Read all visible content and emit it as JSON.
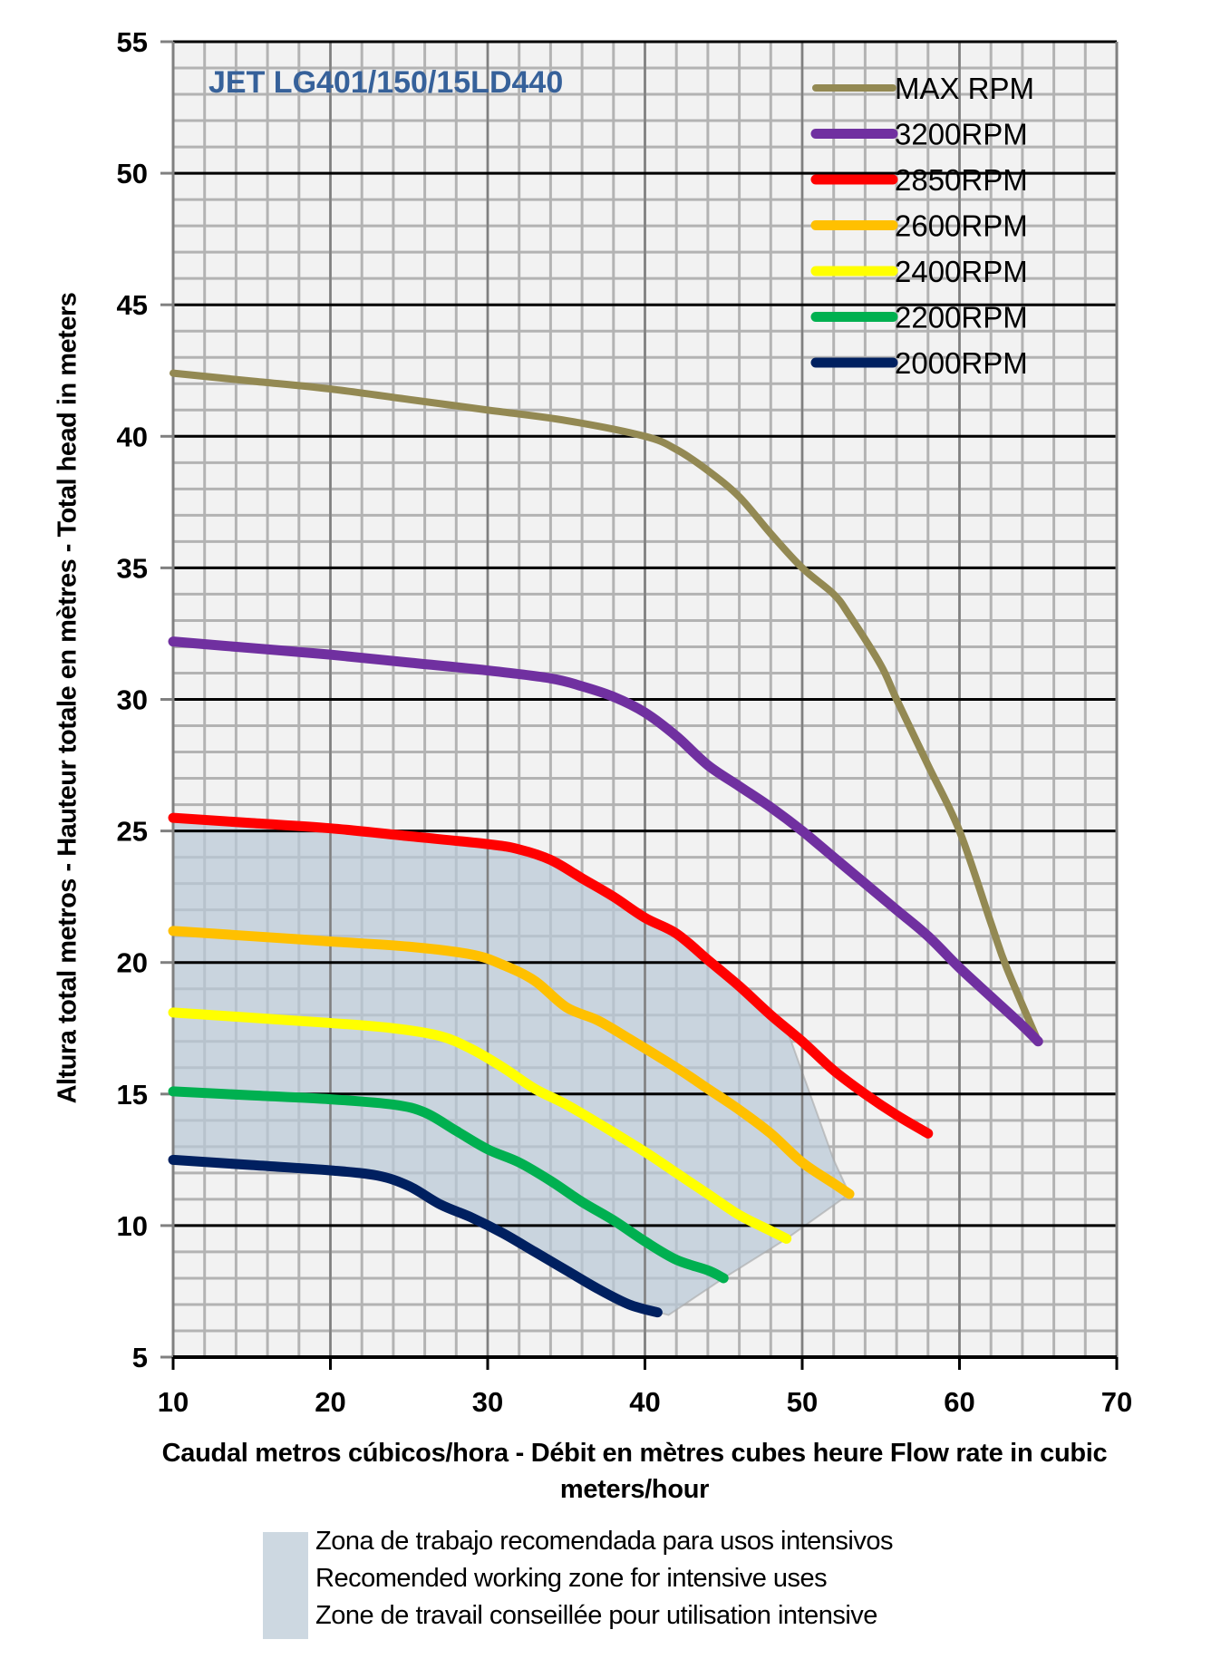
{
  "chart_data": {
    "type": "line",
    "title": "JET LG401/150/15LD440",
    "xlabel": "Caudal metros cúbicos/hora - Débit en mètres cubes heure  Flow rate in cubic meters/hour",
    "ylabel": "Altura total metros - Hauteur totale en mètres - Total head in meters",
    "xlim": [
      10,
      70
    ],
    "ylim": [
      5,
      55
    ],
    "x_ticks": [
      10,
      20,
      30,
      40,
      50,
      60,
      70
    ],
    "y_ticks": [
      5,
      10,
      15,
      20,
      25,
      30,
      35,
      40,
      45,
      50,
      55
    ],
    "x_minor_step": 2,
    "y_minor_step": 1,
    "grid": true,
    "legend_position": "top-right",
    "plot_background": "#f2f2f2",
    "title_color": "#36619a",
    "series": [
      {
        "name": "MAX RPM",
        "color": "#938953",
        "points": [
          [
            10,
            42.4
          ],
          [
            15,
            42.1
          ],
          [
            20,
            41.8
          ],
          [
            25,
            41.4
          ],
          [
            30,
            41.0
          ],
          [
            35,
            40.6
          ],
          [
            40,
            40.0
          ],
          [
            42,
            39.5
          ],
          [
            44,
            38.7
          ],
          [
            46,
            37.7
          ],
          [
            48,
            36.3
          ],
          [
            50,
            35.0
          ],
          [
            52,
            34.0
          ],
          [
            53,
            33.2
          ],
          [
            55,
            31.3
          ],
          [
            56,
            30.0
          ],
          [
            58,
            27.5
          ],
          [
            60,
            25.0
          ],
          [
            62,
            21.5
          ],
          [
            63,
            19.8
          ],
          [
            65,
            17.0
          ]
        ]
      },
      {
        "name": "3200RPM",
        "color": "#7030a0",
        "points": [
          [
            10,
            32.2
          ],
          [
            15,
            31.95
          ],
          [
            20,
            31.7
          ],
          [
            25,
            31.4
          ],
          [
            30,
            31.1
          ],
          [
            34,
            30.8
          ],
          [
            36,
            30.5
          ],
          [
            38,
            30.1
          ],
          [
            40,
            29.5
          ],
          [
            42,
            28.6
          ],
          [
            44,
            27.5
          ],
          [
            46,
            26.7
          ],
          [
            48,
            25.9
          ],
          [
            50,
            25.0
          ],
          [
            52,
            24.0
          ],
          [
            54,
            23.0
          ],
          [
            56,
            22.0
          ],
          [
            58,
            21.0
          ],
          [
            60,
            19.8
          ],
          [
            62,
            18.7
          ],
          [
            64,
            17.6
          ],
          [
            65,
            17.0
          ]
        ]
      },
      {
        "name": "2850RPM",
        "color": "#ff0000",
        "points": [
          [
            10,
            25.5
          ],
          [
            15,
            25.3
          ],
          [
            20,
            25.1
          ],
          [
            25,
            24.8
          ],
          [
            30,
            24.5
          ],
          [
            32,
            24.3
          ],
          [
            34,
            23.9
          ],
          [
            36,
            23.2
          ],
          [
            38,
            22.5
          ],
          [
            40,
            21.7
          ],
          [
            42,
            21.1
          ],
          [
            44,
            20.1
          ],
          [
            46,
            19.1
          ],
          [
            48,
            18.0
          ],
          [
            50,
            17.0
          ],
          [
            52,
            15.9
          ],
          [
            54,
            15.0
          ],
          [
            56,
            14.2
          ],
          [
            58,
            13.5
          ]
        ]
      },
      {
        "name": "2600RPM",
        "color": "#ffc000",
        "points": [
          [
            10,
            21.2
          ],
          [
            15,
            21.0
          ],
          [
            20,
            20.8
          ],
          [
            25,
            20.6
          ],
          [
            29,
            20.3
          ],
          [
            31,
            19.9
          ],
          [
            33,
            19.3
          ],
          [
            35,
            18.3
          ],
          [
            37,
            17.8
          ],
          [
            39,
            17.1
          ],
          [
            42,
            16.0
          ],
          [
            44,
            15.2
          ],
          [
            46,
            14.4
          ],
          [
            48,
            13.5
          ],
          [
            50,
            12.4
          ],
          [
            52,
            11.6
          ],
          [
            53,
            11.2
          ]
        ]
      },
      {
        "name": "2400RPM",
        "color": "#ffff00",
        "points": [
          [
            10,
            18.1
          ],
          [
            15,
            17.9
          ],
          [
            20,
            17.7
          ],
          [
            24,
            17.5
          ],
          [
            27,
            17.2
          ],
          [
            29,
            16.7
          ],
          [
            31,
            16.0
          ],
          [
            33,
            15.2
          ],
          [
            35,
            14.6
          ],
          [
            37,
            13.9
          ],
          [
            40,
            12.8
          ],
          [
            42,
            12.0
          ],
          [
            44,
            11.2
          ],
          [
            46,
            10.4
          ],
          [
            48,
            9.8
          ],
          [
            49,
            9.5
          ]
        ]
      },
      {
        "name": "2200RPM",
        "color": "#00b050",
        "points": [
          [
            10,
            15.1
          ],
          [
            15,
            14.95
          ],
          [
            20,
            14.8
          ],
          [
            24,
            14.6
          ],
          [
            26,
            14.3
          ],
          [
            28,
            13.6
          ],
          [
            30,
            12.9
          ],
          [
            32,
            12.4
          ],
          [
            34,
            11.7
          ],
          [
            36,
            10.9
          ],
          [
            38,
            10.2
          ],
          [
            40,
            9.4
          ],
          [
            42,
            8.7
          ],
          [
            44,
            8.3
          ],
          [
            45,
            8.0
          ]
        ]
      },
      {
        "name": "2000RPM",
        "color": "#002060",
        "points": [
          [
            10,
            12.5
          ],
          [
            15,
            12.3
          ],
          [
            20,
            12.1
          ],
          [
            23,
            11.9
          ],
          [
            25,
            11.5
          ],
          [
            27,
            10.8
          ],
          [
            29,
            10.3
          ],
          [
            31,
            9.7
          ],
          [
            33,
            9.0
          ],
          [
            35,
            8.3
          ],
          [
            37,
            7.6
          ],
          [
            39,
            7.0
          ],
          [
            40.8,
            6.7
          ]
        ]
      }
    ],
    "zone": {
      "name": "Recommended working zone",
      "color": "#b8c7d6",
      "points": [
        [
          10,
          25.5
        ],
        [
          15,
          25.3
        ],
        [
          20,
          25.1
        ],
        [
          25,
          24.8
        ],
        [
          30,
          24.5
        ],
        [
          32,
          24.3
        ],
        [
          34,
          23.9
        ],
        [
          36,
          23.2
        ],
        [
          38,
          22.5
        ],
        [
          40,
          21.7
        ],
        [
          42,
          21.1
        ],
        [
          44,
          20.1
        ],
        [
          46,
          19.1
        ],
        [
          48,
          18.0
        ],
        [
          49,
          17.5
        ],
        [
          50.5,
          15.0
        ],
        [
          52,
          12.5
        ],
        [
          53,
          11.2
        ],
        [
          49,
          9.5
        ],
        [
          45,
          8.0
        ],
        [
          41.5,
          6.6
        ],
        [
          39,
          7.0
        ],
        [
          37,
          7.6
        ],
        [
          35,
          8.3
        ],
        [
          33,
          9.0
        ],
        [
          31,
          9.7
        ],
        [
          29,
          10.3
        ],
        [
          27,
          10.8
        ],
        [
          25,
          11.5
        ],
        [
          23,
          11.9
        ],
        [
          20,
          12.1
        ],
        [
          15,
          12.3
        ],
        [
          10,
          12.5
        ]
      ]
    }
  },
  "zone_legend": {
    "lines": [
      "Zona de trabajo recomendada para usos intensivos",
      "Recomended working zone for intensive uses",
      "Zone de travail conseillée pour utilisation intensive"
    ]
  },
  "x_axis_label": "Caudal metros cúbicos/hora - Débit en mètres cubes heure  Flow rate in cubic meters/hour",
  "y_axis_label": "Altura total metros - Hauteur totale en mètres - Total head in meters"
}
